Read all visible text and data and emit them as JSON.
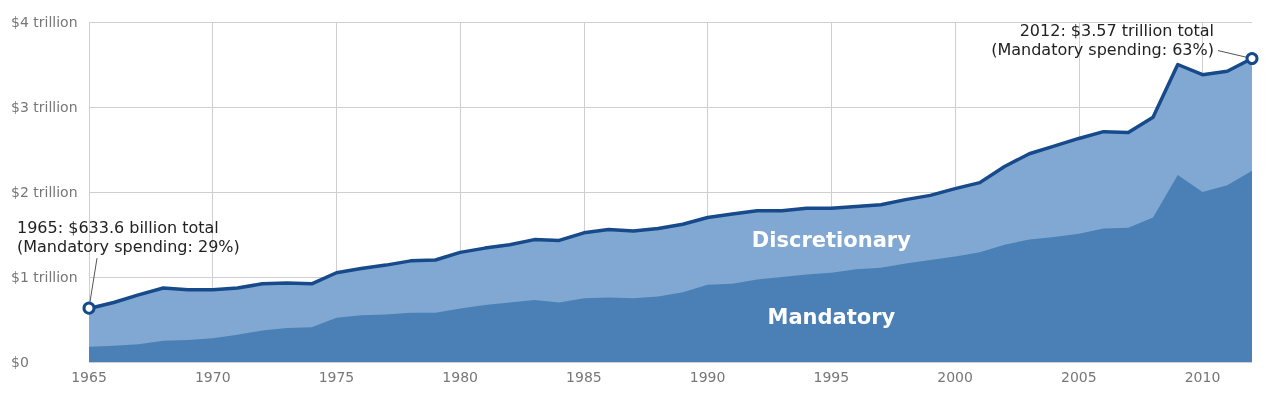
{
  "chart_data": {
    "type": "area",
    "stacked": true,
    "x": [
      1965,
      1966,
      1967,
      1968,
      1969,
      1970,
      1971,
      1972,
      1973,
      1974,
      1975,
      1976,
      1977,
      1978,
      1979,
      1980,
      1981,
      1982,
      1983,
      1984,
      1985,
      1986,
      1987,
      1988,
      1989,
      1990,
      1991,
      1992,
      1993,
      1994,
      1995,
      1996,
      1997,
      1998,
      1999,
      2000,
      2001,
      2002,
      2003,
      2004,
      2005,
      2006,
      2007,
      2008,
      2009,
      2010,
      2011,
      2012
    ],
    "series": [
      {
        "name": "Mandatory",
        "color": "#4a80b6",
        "values": [
          0.18,
          0.19,
          0.21,
          0.25,
          0.26,
          0.28,
          0.32,
          0.37,
          0.4,
          0.41,
          0.52,
          0.55,
          0.56,
          0.58,
          0.58,
          0.63,
          0.67,
          0.7,
          0.73,
          0.7,
          0.75,
          0.76,
          0.75,
          0.77,
          0.82,
          0.91,
          0.92,
          0.97,
          1.0,
          1.03,
          1.05,
          1.09,
          1.11,
          1.16,
          1.2,
          1.24,
          1.29,
          1.38,
          1.44,
          1.47,
          1.51,
          1.57,
          1.58,
          1.7,
          2.2,
          2.0,
          2.08,
          2.25
        ]
      },
      {
        "name": "Discretionary",
        "color": "#80a8d2",
        "values": [
          0.45,
          0.51,
          0.58,
          0.62,
          0.59,
          0.57,
          0.55,
          0.55,
          0.53,
          0.51,
          0.53,
          0.55,
          0.58,
          0.61,
          0.62,
          0.66,
          0.67,
          0.68,
          0.71,
          0.73,
          0.77,
          0.8,
          0.79,
          0.8,
          0.8,
          0.79,
          0.82,
          0.81,
          0.78,
          0.78,
          0.76,
          0.74,
          0.74,
          0.75,
          0.76,
          0.8,
          0.82,
          0.92,
          1.01,
          1.07,
          1.12,
          1.14,
          1.12,
          1.18,
          1.3,
          1.38,
          1.34,
          1.32
        ]
      }
    ],
    "xlim": [
      1965,
      2012
    ],
    "xticks": [
      1965,
      1970,
      1975,
      1980,
      1985,
      1990,
      1995,
      2000,
      2005,
      2010
    ],
    "ylim": [
      0,
      4
    ],
    "yticks": [
      {
        "value": 0,
        "label": "$0"
      },
      {
        "value": 1,
        "label": "$1 trillion"
      },
      {
        "value": 2,
        "label": "$2 trillion"
      },
      {
        "value": 3,
        "label": "$3 trillion"
      },
      {
        "value": 4,
        "label": "$4 trillion"
      }
    ],
    "grid": true,
    "legend": false,
    "annotations": [
      {
        "text": "1965: $633.6 billion total\n(Mandatory spending: 29%)",
        "x": 1965,
        "y": 0.6336
      },
      {
        "text": "2012: $3.57 trillion total\n(Mandatory spending: 63%)",
        "x": 2012,
        "y": 3.57
      }
    ]
  }
}
